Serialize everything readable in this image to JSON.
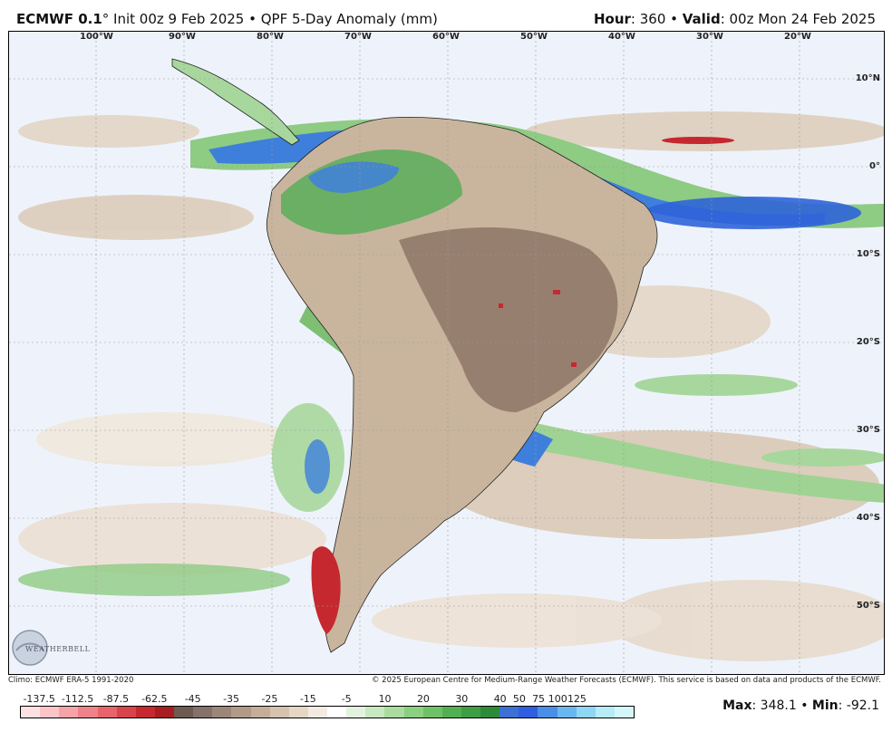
{
  "header": {
    "model": "ECMWF 0.1",
    "degree_sign": "°",
    "init": " Init 00z 9 Feb 2025 • QPF 5-Day Anomaly (mm)",
    "hour_label": "Hour",
    "hour_value": ": 360 • ",
    "valid_label": "Valid",
    "valid_value": ": 00z Mon 24 Feb 2025"
  },
  "lon_labels": [
    "100°W",
    "90°W",
    "80°W",
    "70°W",
    "60°W",
    "50°W",
    "40°W",
    "30°W",
    "20°W"
  ],
  "lat_labels": [
    "10°N",
    "0°",
    "10°S",
    "20°S",
    "30°S",
    "40°S",
    "50°S"
  ],
  "footer": {
    "climo": "Climo: ECMWF ERA-5 1991-2020",
    "copyright": "© 2025 European Centre for Medium-Range Weather Forecasts (ECMWF). This service is based on data and products of the ECMWF.",
    "max_label": "Max",
    "max_value": ": 348.1 • ",
    "min_label": "Min",
    "min_value": ": -92.1"
  },
  "colorbar": {
    "tick_labels": [
      "-137.5",
      "-112.5",
      "-87.5",
      "-62.5",
      "-45",
      "-35",
      "-25",
      "-15",
      "-5",
      "10",
      "20",
      "30",
      "40",
      "50",
      "75",
      "100",
      "125"
    ],
    "colors": [
      "#fde0e2",
      "#fbc5c8",
      "#f5a3a8",
      "#ef8289",
      "#e8636a",
      "#d9434b",
      "#c6282f",
      "#a81d22",
      "#6f5a52",
      "#85706a",
      "#9c8678",
      "#b19a88",
      "#c4ae9a",
      "#d6c2ae",
      "#e6d6c4",
      "#f3ebe1",
      "#ffffff",
      "#e3f2de",
      "#c8e8bf",
      "#aadc9f",
      "#8bcf80",
      "#6ec166",
      "#52b052",
      "#3d9e44",
      "#2d8a3a",
      "#3d6fd4",
      "#2f5fe0",
      "#4a8ee8",
      "#69b7f0",
      "#8fd6f5",
      "#b5ecf8",
      "#d5f6fb"
    ]
  },
  "logo": {
    "text": "WEATHERBELL"
  }
}
